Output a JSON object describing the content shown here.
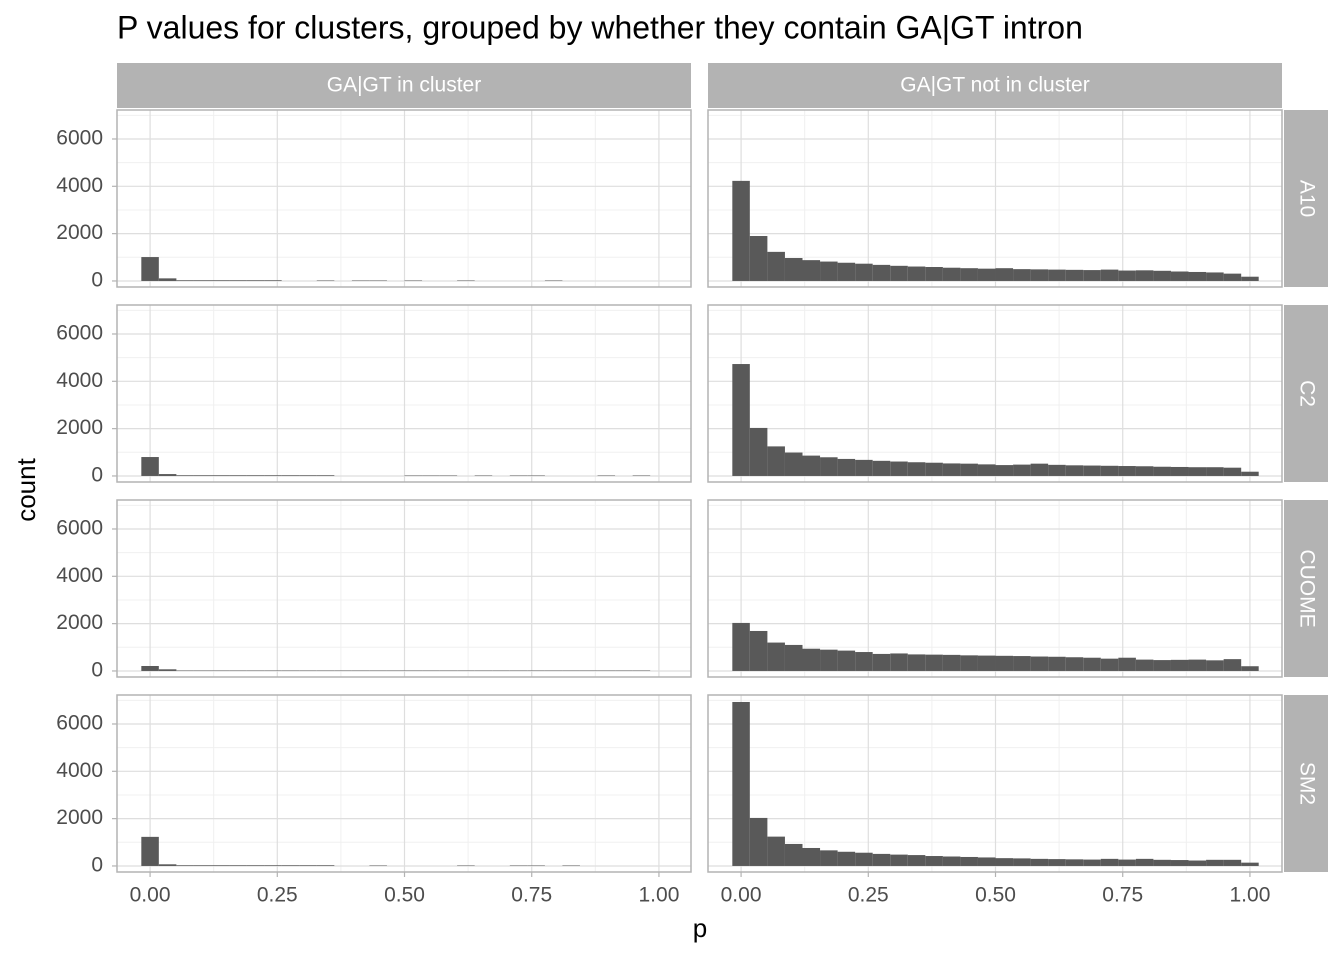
{
  "chart_data": {
    "type": "histogram",
    "title": "P values for clusters, grouped by whether they contain GA|GT intron",
    "x_label": "p",
    "y_label": "count",
    "columns": [
      "GA|GT in cluster",
      "GA|GT not in cluster"
    ],
    "color": "#595959",
    "grid": true,
    "xlim": [
      -0.065,
      1.063
    ],
    "ylim": [
      -255,
      7225
    ],
    "xticks": [
      {
        "value": 0,
        "label": "0.00"
      },
      {
        "value": 0.25,
        "label": "0.25"
      },
      {
        "value": 0.5,
        "label": "0.50"
      },
      {
        "value": 0.75,
        "label": "0.75"
      },
      {
        "value": 1,
        "label": "1.00"
      }
    ],
    "yticks": [
      0,
      2000,
      4000,
      6000
    ],
    "x_minor_grid": [
      0.125,
      0.375,
      0.625,
      0.875
    ],
    "y_minor_grid": [
      1000,
      3000,
      5000,
      7000
    ],
    "bins": [
      -0.0172,
      0.0172,
      0.0517,
      0.0862,
      0.1207,
      0.1552,
      0.1897,
      0.2241,
      0.2586,
      0.2931,
      0.3276,
      0.3621,
      0.3966,
      0.431,
      0.4655,
      0.5,
      0.5345,
      0.569,
      0.6034,
      0.6379,
      0.6724,
      0.7069,
      0.7414,
      0.7759,
      0.8103,
      0.8448,
      0.8793,
      0.9138,
      0.9483,
      0.9828,
      1.0172
    ],
    "rows": [
      {
        "label": "A10",
        "panels": [
          {
            "values": [
              1010,
              110,
              30,
              30,
              30,
              30,
              30,
              30,
              0,
              0,
              20,
              0,
              20,
              20,
              0,
              20,
              0,
              0,
              20,
              0,
              0,
              0,
              0,
              20,
              0,
              0,
              0,
              0,
              0,
              0
            ]
          },
          {
            "values": [
              4230,
              1900,
              1230,
              970,
              880,
              820,
              770,
              730,
              680,
              640,
              610,
              590,
              560,
              540,
              520,
              540,
              500,
              490,
              480,
              470,
              460,
              480,
              440,
              450,
              430,
              400,
              380,
              360,
              310,
              180
            ]
          }
        ]
      },
      {
        "label": "C2",
        "panels": [
          {
            "values": [
              800,
              80,
              30,
              30,
              30,
              30,
              30,
              30,
              30,
              30,
              30,
              0,
              0,
              0,
              0,
              20,
              20,
              20,
              0,
              20,
              0,
              20,
              20,
              0,
              0,
              0,
              20,
              0,
              20,
              0
            ]
          },
          {
            "values": [
              4730,
              2030,
              1250,
              990,
              860,
              790,
              720,
              680,
              640,
              610,
              580,
              560,
              530,
              520,
              490,
              460,
              480,
              520,
              470,
              450,
              440,
              430,
              420,
              410,
              390,
              380,
              370,
              370,
              350,
              180
            ]
          }
        ]
      },
      {
        "label": "CUOME",
        "panels": [
          {
            "values": [
              210,
              70,
              20,
              20,
              20,
              20,
              20,
              20,
              20,
              20,
              20,
              20,
              20,
              20,
              20,
              20,
              20,
              20,
              20,
              20,
              20,
              20,
              20,
              20,
              20,
              20,
              20,
              20,
              20,
              0
            ]
          },
          {
            "values": [
              2030,
              1690,
              1200,
              1100,
              940,
              900,
              860,
              800,
              720,
              740,
              700,
              690,
              680,
              660,
              650,
              640,
              630,
              610,
              600,
              580,
              560,
              520,
              560,
              480,
              460,
              470,
              480,
              450,
              500,
              200
            ]
          }
        ]
      },
      {
        "label": "SM2",
        "panels": [
          {
            "values": [
              1230,
              70,
              30,
              30,
              30,
              30,
              30,
              30,
              30,
              30,
              30,
              0,
              0,
              20,
              0,
              0,
              0,
              0,
              20,
              0,
              0,
              20,
              20,
              0,
              20,
              0,
              0,
              0,
              0,
              0
            ]
          },
          {
            "values": [
              6930,
              2030,
              1240,
              930,
              760,
              660,
              600,
              560,
              510,
              480,
              460,
              420,
              400,
              380,
              360,
              330,
              320,
              300,
              290,
              280,
              270,
              300,
              270,
              300,
              260,
              250,
              230,
              260,
              260,
              140
            ]
          }
        ]
      }
    ]
  }
}
